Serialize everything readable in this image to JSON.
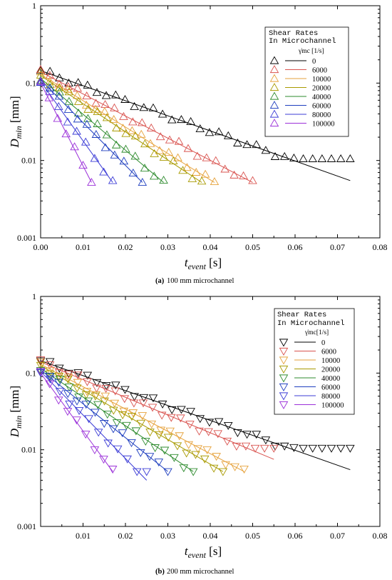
{
  "figure": {
    "panels": [
      {
        "caption_label": "(a)",
        "caption_text": "100 mm microchannel",
        "legend_title_1": "Shear Rates",
        "legend_title_2": "In Microchannel",
        "legend_unit": "γ̇mc [1/s]",
        "marker": "triangle-up"
      },
      {
        "caption_label": "(b)",
        "caption_text": "200 mm microchannel",
        "legend_title_1": "Shear Rates",
        "legend_title_2": "In Microchannel",
        "legend_unit": "γ̇mc[1/s]",
        "marker": "triangle-down"
      }
    ]
  },
  "chart_data": [
    {
      "type": "scatter",
      "xlabel": "t_event [s]",
      "ylabel": "D_min [mm]",
      "xlim": [
        0,
        0.08
      ],
      "ylim": [
        0.001,
        1
      ],
      "yscale": "log",
      "x_ticks": [
        "0.00",
        "0.01",
        "0.02",
        "0.03",
        "0.04",
        "0.05",
        "0.06",
        "0.07",
        "0.08"
      ],
      "y_ticks": [
        "0.001",
        "0.01",
        "0.1",
        "1"
      ],
      "legend_position": "top-right",
      "series": [
        {
          "name": "0",
          "color": "#000000",
          "d0": 0.145,
          "t_end": 0.073,
          "fit_end": 0.0055,
          "floor": 0.0105
        },
        {
          "name": "6000",
          "color": "#d9534f",
          "d0": 0.14,
          "t_end": 0.05,
          "fit_end": 0.0052,
          "floor": 0.0052
        },
        {
          "name": "10000",
          "color": "#e6a23c",
          "d0": 0.13,
          "t_end": 0.041,
          "fit_end": 0.0052,
          "floor": 0.0052
        },
        {
          "name": "20000",
          "color": "#a89a00",
          "d0": 0.125,
          "t_end": 0.038,
          "fit_end": 0.0052,
          "floor": 0.0052
        },
        {
          "name": "40000",
          "color": "#2e8b2e",
          "d0": 0.115,
          "t_end": 0.029,
          "fit_end": 0.0052,
          "floor": 0.0052
        },
        {
          "name": "60000",
          "color": "#1f3fbf",
          "d0": 0.11,
          "t_end": 0.024,
          "fit_end": 0.0052,
          "floor": 0.0052
        },
        {
          "name": "80000",
          "color": "#3b3bd6",
          "d0": 0.105,
          "t_end": 0.017,
          "fit_end": 0.0052,
          "floor": 0.0052
        },
        {
          "name": "100000",
          "color": "#9b30d9",
          "d0": 0.1,
          "t_end": 0.012,
          "fit_end": 0.0052,
          "floor": 0.0052
        }
      ]
    },
    {
      "type": "scatter",
      "xlabel": "t_event [s]",
      "ylabel": "D_min [mm]",
      "xlim": [
        0,
        0.08
      ],
      "ylim": [
        0.001,
        1
      ],
      "yscale": "log",
      "x_ticks": [
        "0.01",
        "0.02",
        "0.03",
        "0.04",
        "0.05",
        "0.06",
        "0.07",
        "0.08"
      ],
      "y_ticks": [
        "0.001",
        "0.01",
        "0.1",
        "1"
      ],
      "legend_position": "top-right",
      "series": [
        {
          "name": "0",
          "color": "#000000",
          "d0": 0.145,
          "t_end": 0.073,
          "fit_end": 0.0055,
          "floor": 0.0105
        },
        {
          "name": "6000",
          "color": "#d9534f",
          "d0": 0.14,
          "t_end": 0.055,
          "fit_end": 0.0075,
          "floor": 0.0105
        },
        {
          "name": "10000",
          "color": "#e6a23c",
          "d0": 0.13,
          "t_end": 0.048,
          "fit_end": 0.0052,
          "floor": 0.0052
        },
        {
          "name": "20000",
          "color": "#a89a00",
          "d0": 0.125,
          "t_end": 0.043,
          "fit_end": 0.0052,
          "floor": 0.0052
        },
        {
          "name": "40000",
          "color": "#2e8b2e",
          "d0": 0.115,
          "t_end": 0.036,
          "fit_end": 0.0052,
          "floor": 0.0052
        },
        {
          "name": "60000",
          "color": "#1f3fbf",
          "d0": 0.11,
          "t_end": 0.03,
          "fit_end": 0.0052,
          "floor": 0.0052
        },
        {
          "name": "80000",
          "color": "#3b3bd6",
          "d0": 0.105,
          "t_end": 0.025,
          "fit_end": 0.004,
          "floor": 0.0052
        },
        {
          "name": "100000",
          "color": "#9b30d9",
          "d0": 0.1,
          "t_end": 0.017,
          "fit_end": 0.0052,
          "floor": 0.0052
        }
      ]
    }
  ]
}
